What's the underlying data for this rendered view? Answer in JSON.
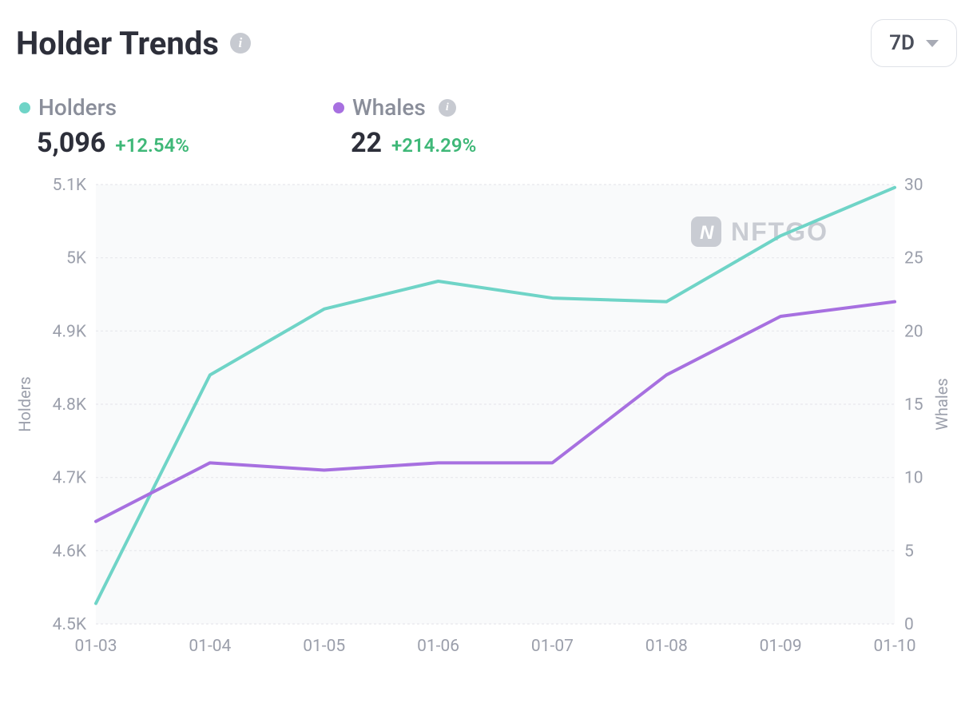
{
  "header": {
    "title": "Holder Trends",
    "range_selected": "7D"
  },
  "legend": {
    "holders": {
      "label": "Holders",
      "value": "5,096",
      "change": "+12.54%",
      "change_color": "#3fb878",
      "dot_color": "#6fd4c7"
    },
    "whales": {
      "label": "Whales",
      "value": "22",
      "change": "+214.29%",
      "change_color": "#3fb878",
      "dot_color": "#a770e0"
    }
  },
  "chart": {
    "type": "line",
    "background_color": "#f9fafb",
    "grid_color": "#e7e8ec",
    "x": {
      "categories": [
        "01-03",
        "01-04",
        "01-05",
        "01-06",
        "01-07",
        "01-08",
        "01-09",
        "01-10"
      ]
    },
    "y_left": {
      "title": "Holders",
      "min": 4500,
      "max": 5100,
      "ticks": [
        4500,
        4600,
        4700,
        4800,
        4900,
        5000,
        5100
      ],
      "tick_labels": [
        "4.5K",
        "4.6K",
        "4.7K",
        "4.8K",
        "4.9K",
        "5K",
        "5.1K"
      ]
    },
    "y_right": {
      "title": "Whales",
      "min": 0,
      "max": 30,
      "ticks": [
        0,
        5,
        10,
        15,
        20,
        25,
        30
      ],
      "tick_labels": [
        "0",
        "5",
        "10",
        "15",
        "20",
        "25",
        "30"
      ]
    },
    "series": [
      {
        "name": "Holders",
        "axis": "left",
        "color": "#6fd4c7",
        "line_width": 4,
        "data": [
          4528,
          4840,
          4930,
          4968,
          4945,
          4940,
          5030,
          5096
        ]
      },
      {
        "name": "Whales",
        "axis": "right",
        "color": "#a770e0",
        "line_width": 4,
        "data": [
          7,
          11,
          10.5,
          11,
          11,
          17,
          21,
          22
        ]
      }
    ],
    "watermark": "NFTGO",
    "label_fontsize": 21,
    "title_fontsize": 20
  }
}
